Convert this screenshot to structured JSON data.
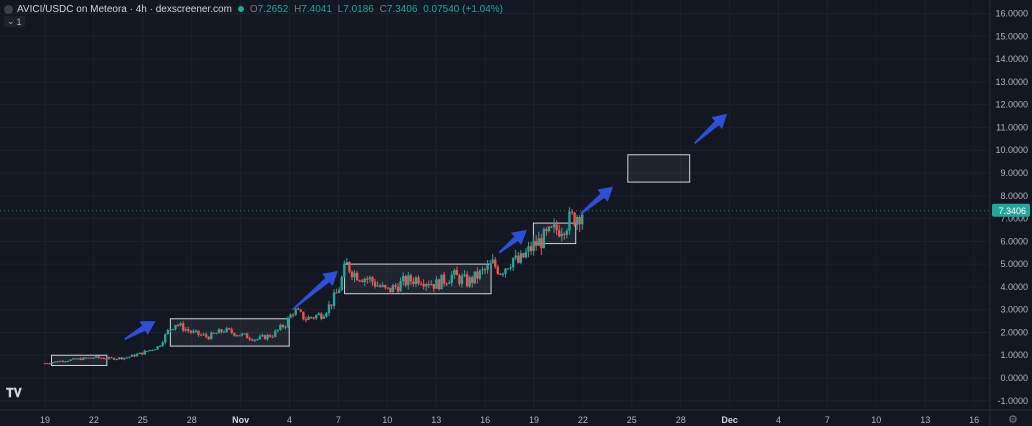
{
  "header": {
    "title": "AVICI/USDC on Meteora · 4h · dexscreener.com",
    "open_label": "O",
    "open_value": "7.2652",
    "high_label": "H",
    "high_value": "7.4041",
    "low_label": "L",
    "low_value": "7.0186",
    "close_label": "C",
    "close_value": "7.3406",
    "change": "0.07540 (+1.04%)",
    "indicator_toggle": "1"
  },
  "colors": {
    "up": "#26a69a",
    "down": "#ef5350",
    "arrow": "#2f4fd6",
    "box": "#d1d4dc",
    "bg": "#131722",
    "grid": "#1c2030"
  },
  "icons": [
    "symbol-icon",
    "status-dot-icon",
    "chevron-down-icon",
    "tradingview-logo-icon",
    "gear-icon"
  ],
  "chart_data": {
    "type": "candlestick",
    "y_axis": {
      "ticks": [
        "16.0000",
        "15.0000",
        "14.0000",
        "13.0000",
        "12.0000",
        "11.0000",
        "10.0000",
        "9.0000",
        "8.0000",
        "7.0000",
        "6.0000",
        "5.0000",
        "4.0000",
        "3.0000",
        "2.0000",
        "1.0000",
        "0.0000",
        "-1.0000"
      ],
      "range": [
        -1.5,
        16.4
      ],
      "last_price_label": "7.3406",
      "last_price": 7.3406
    },
    "x_axis": {
      "ticks": [
        "19",
        "22",
        "25",
        "28",
        "Nov",
        "4",
        "7",
        "10",
        "13",
        "16",
        "19",
        "22",
        "25",
        "28",
        "Dec",
        "4",
        "7",
        "10",
        "13",
        "16"
      ],
      "bold_ticks": [
        "Nov",
        "Dec"
      ]
    },
    "price_path": [
      {
        "x": 0.0,
        "y": 0.65
      },
      {
        "x": 1.0,
        "y": 0.75
      },
      {
        "x": 3.0,
        "y": 0.9
      },
      {
        "x": 4.0,
        "y": 0.85
      },
      {
        "x": 5.0,
        "y": 0.9
      },
      {
        "x": 6.0,
        "y": 1.1
      },
      {
        "x": 7.0,
        "y": 1.4
      },
      {
        "x": 7.5,
        "y": 2.0
      },
      {
        "x": 8.0,
        "y": 2.4
      },
      {
        "x": 9.0,
        "y": 2.0
      },
      {
        "x": 10.0,
        "y": 1.8
      },
      {
        "x": 11.0,
        "y": 2.1
      },
      {
        "x": 12.0,
        "y": 1.9
      },
      {
        "x": 13.0,
        "y": 1.7
      },
      {
        "x": 14.0,
        "y": 1.9
      },
      {
        "x": 14.8,
        "y": 2.4
      },
      {
        "x": 15.3,
        "y": 3.0
      },
      {
        "x": 16.0,
        "y": 2.6
      },
      {
        "x": 17.0,
        "y": 2.8
      },
      {
        "x": 17.5,
        "y": 3.2
      },
      {
        "x": 18.0,
        "y": 3.8
      },
      {
        "x": 18.5,
        "y": 5.0
      },
      {
        "x": 19.0,
        "y": 4.6
      },
      {
        "x": 20.0,
        "y": 4.3
      },
      {
        "x": 21.0,
        "y": 3.8
      },
      {
        "x": 22.0,
        "y": 4.2
      },
      {
        "x": 23.0,
        "y": 4.4
      },
      {
        "x": 24.0,
        "y": 4.1
      },
      {
        "x": 25.0,
        "y": 4.5
      },
      {
        "x": 26.0,
        "y": 4.2
      },
      {
        "x": 27.0,
        "y": 4.7
      },
      {
        "x": 27.5,
        "y": 5.0
      },
      {
        "x": 28.0,
        "y": 4.7
      },
      {
        "x": 28.8,
        "y": 5.3
      },
      {
        "x": 29.0,
        "y": 5.0
      },
      {
        "x": 30.0,
        "y": 5.8
      },
      {
        "x": 31.0,
        "y": 6.3
      },
      {
        "x": 32.0,
        "y": 6.8
      },
      {
        "x": 33.0,
        "y": 7.34
      }
    ],
    "zones": [
      {
        "x0": 0.4,
        "x1": 3.8,
        "ylow": 0.55,
        "yhigh": 1.0
      },
      {
        "x0": 7.7,
        "x1": 15.0,
        "ylow": 1.4,
        "yhigh": 2.6
      },
      {
        "x0": 18.4,
        "x1": 27.4,
        "ylow": 3.7,
        "yhigh": 5.0
      },
      {
        "x0": 30.0,
        "x1": 32.6,
        "ylow": 5.9,
        "yhigh": 6.8
      },
      {
        "x0": 35.8,
        "x1": 39.6,
        "ylow": 8.6,
        "yhigh": 9.8
      }
    ],
    "arrows": [
      {
        "x0": 4.9,
        "y0": 1.7,
        "x1": 6.8,
        "y1": 2.5
      },
      {
        "x0": 15.2,
        "y0": 3.0,
        "x1": 18.0,
        "y1": 4.7
      },
      {
        "x0": 27.9,
        "y0": 5.5,
        "x1": 29.6,
        "y1": 6.5
      },
      {
        "x0": 32.9,
        "y0": 7.2,
        "x1": 34.9,
        "y1": 8.4
      },
      {
        "x0": 39.9,
        "y0": 10.3,
        "x1": 41.9,
        "y1": 11.6
      }
    ]
  }
}
